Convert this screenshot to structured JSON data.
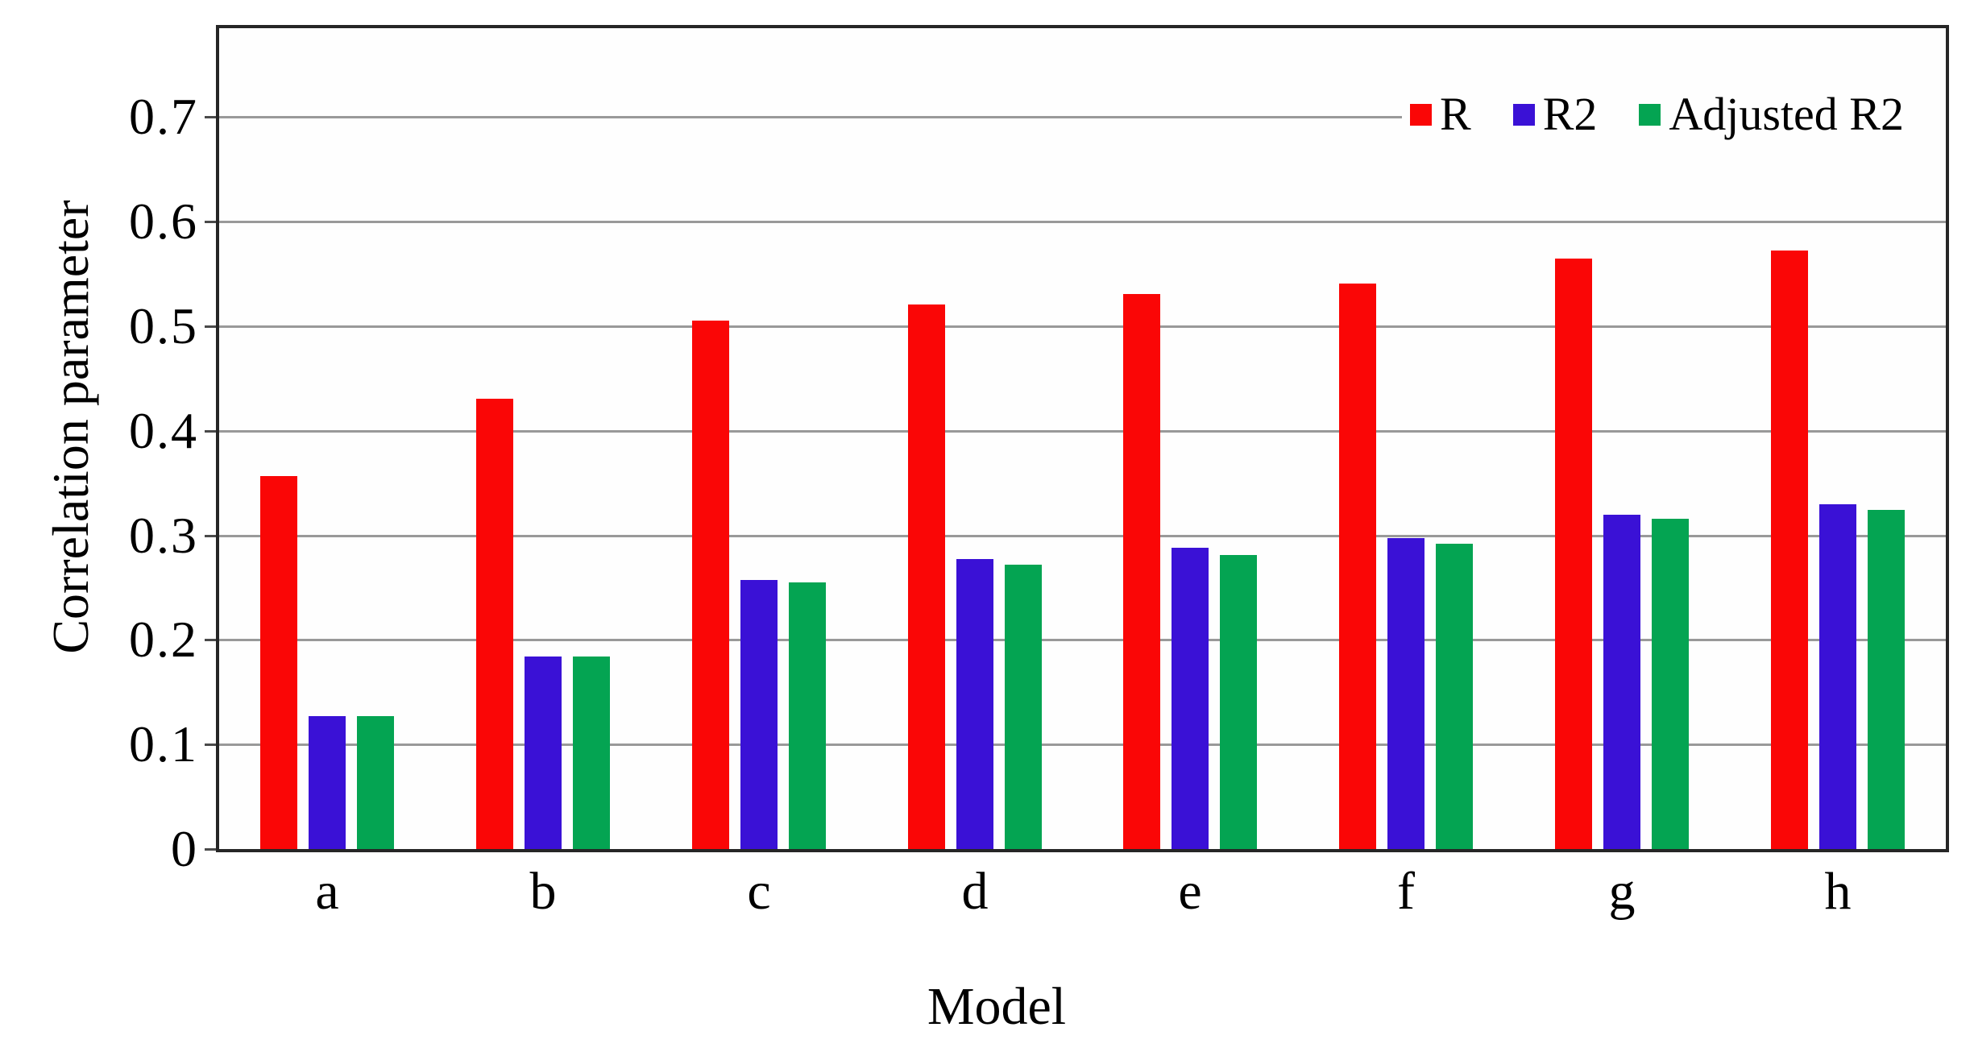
{
  "chart_data": {
    "type": "bar",
    "title": "",
    "categories": [
      "a",
      "b",
      "c",
      "d",
      "e",
      "f",
      "g",
      "h"
    ],
    "series": [
      {
        "name": "R",
        "color": "#fa0606",
        "values": [
          0.357,
          0.431,
          0.505,
          0.521,
          0.531,
          0.541,
          0.565,
          0.572
        ]
      },
      {
        "name": "R2",
        "color": "#3a11d6",
        "values": [
          0.127,
          0.184,
          0.257,
          0.277,
          0.288,
          0.297,
          0.32,
          0.33
        ]
      },
      {
        "name": "Adjusted R2",
        "color": "#04a452",
        "values": [
          0.127,
          0.184,
          0.255,
          0.272,
          0.281,
          0.292,
          0.316,
          0.324
        ]
      }
    ],
    "xlabel": "Model",
    "ylabel": "Correlation parameter",
    "yticks": [
      {
        "value": 0.0,
        "label": "0"
      },
      {
        "value": 0.1,
        "label": "0.1"
      },
      {
        "value": 0.2,
        "label": "0.2"
      },
      {
        "value": 0.3,
        "label": "0.3"
      },
      {
        "value": 0.4,
        "label": "0.4"
      },
      {
        "value": 0.5,
        "label": "0.5"
      },
      {
        "value": 0.6,
        "label": "0.6"
      },
      {
        "value": 0.7,
        "label": "0.7"
      },
      {
        "value": 0.785,
        "label": ""
      }
    ],
    "ylim": [
      0,
      0.785
    ],
    "grid": true,
    "legend_position": "top-right"
  },
  "colors": {
    "gridline": "#999999",
    "plot_border": "#262626",
    "background": "#ffffff",
    "text": "#000000"
  }
}
